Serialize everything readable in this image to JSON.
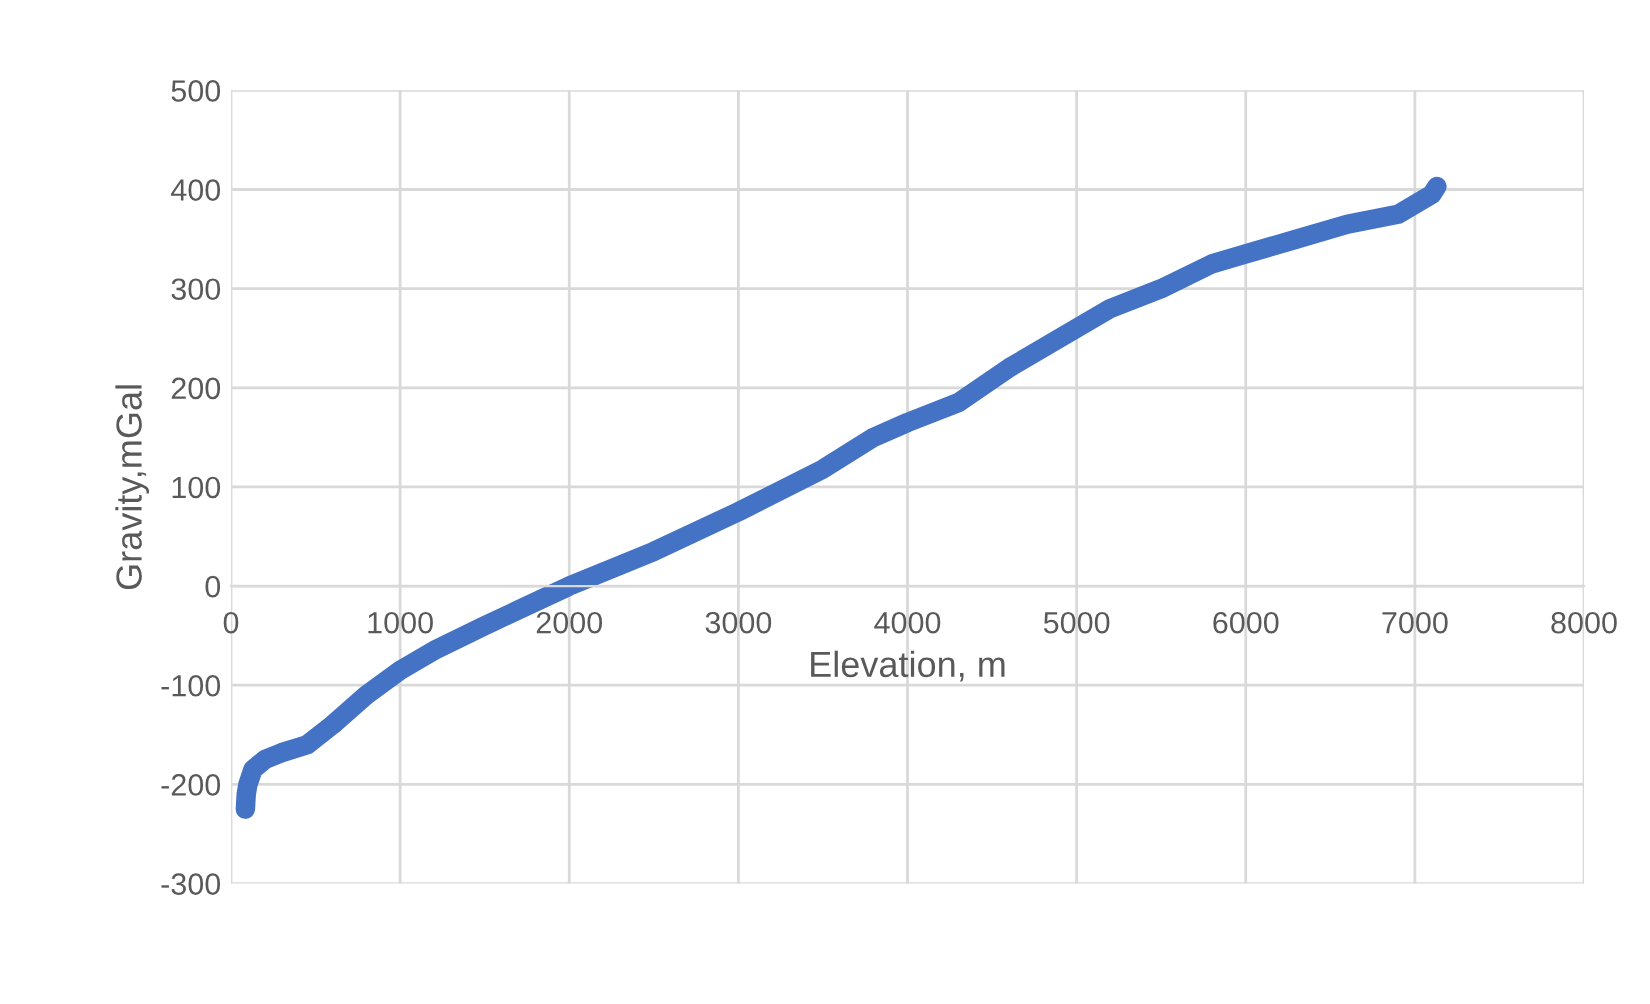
{
  "chart_data": {
    "type": "line",
    "xlabel": "Elevation, m",
    "ylabel": "Gravity,mGal",
    "xlim": [
      0,
      8000
    ],
    "xticks": [
      0,
      1000,
      2000,
      3000,
      4000,
      5000,
      6000,
      7000,
      8000
    ],
    "ylim": [
      -300,
      500
    ],
    "yticks": [
      -300,
      -200,
      -100,
      0,
      100,
      200,
      300,
      400,
      500
    ],
    "grid": true,
    "line_style": "solid",
    "series": [
      {
        "color": "#4472c4",
        "x": [
          85,
          90,
          100,
          130,
          200,
          300,
          450,
          600,
          800,
          1000,
          1200,
          1500,
          2000,
          2500,
          3000,
          3500,
          3800,
          4000,
          4300,
          4600,
          4900,
          5200,
          5500,
          5800,
          6000,
          6300,
          6600,
          6900,
          7100,
          7130
        ],
        "values": [
          -225,
          -210,
          -200,
          -185,
          -175,
          -168,
          -160,
          -140,
          -110,
          -85,
          -65,
          -40,
          0,
          35,
          75,
          118,
          150,
          165,
          185,
          220,
          250,
          280,
          300,
          325,
          335,
          350,
          365,
          375,
          395,
          403
        ]
      }
    ]
  }
}
